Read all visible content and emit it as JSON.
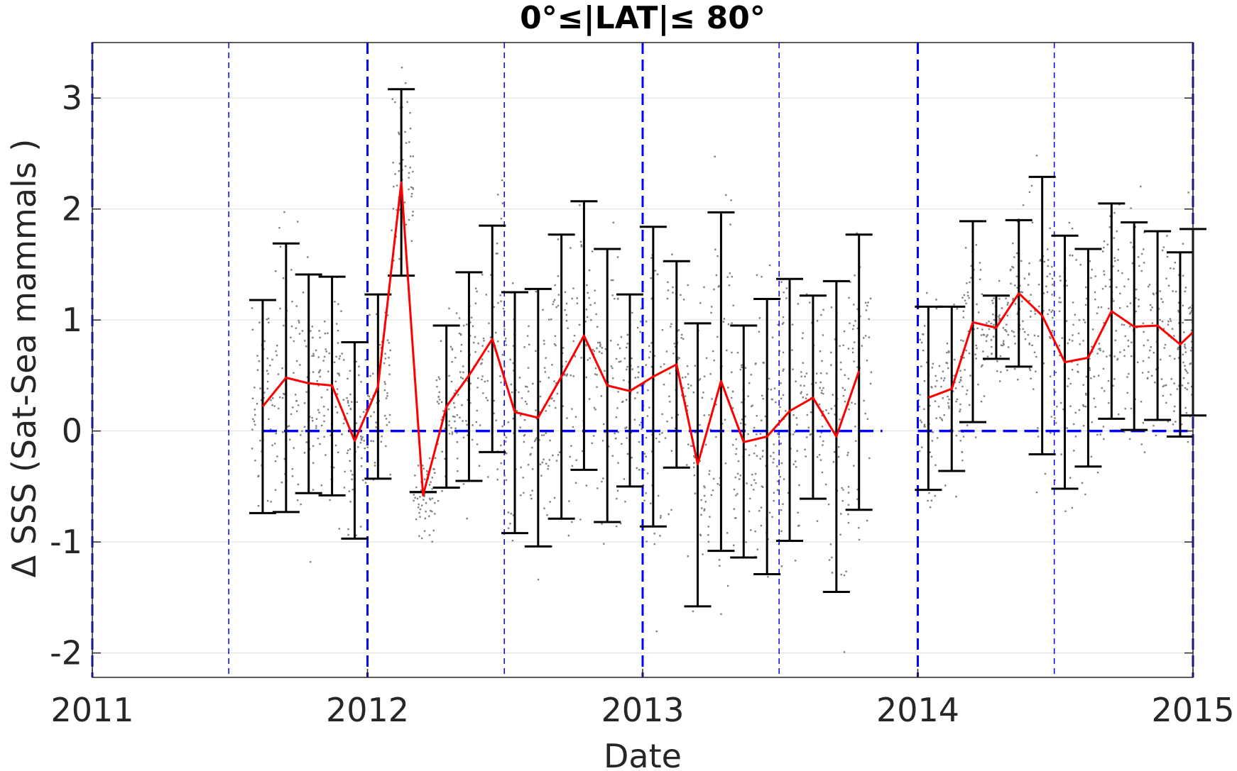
{
  "chart_data": {
    "type": "line",
    "title": "0°≤|LAT|≤ 80°",
    "xlabel": "Date",
    "ylabel": "Δ SSS (Sat-Sea mammals )",
    "xlim": [
      "2011-01-01",
      "2015-01-01"
    ],
    "ylim": [
      -2.22,
      3.5
    ],
    "x_ticks": [
      "2011",
      "2012",
      "2013",
      "2014",
      "2015"
    ],
    "y_ticks": [
      -2,
      -1,
      0,
      1,
      2,
      3
    ],
    "y_tick_labels": [
      "-2",
      "-1",
      "0",
      "1",
      "2",
      "3"
    ],
    "grid": "horizontal",
    "colors": {
      "mean_line": "#ff0000",
      "error_bars": "#000000",
      "year_lines": "#0000ff",
      "zero_line": "#0000ff",
      "scatter": "#808080",
      "grid": "#dddddd"
    },
    "year_boundaries": [
      "2011-01-01",
      "2012-01-01",
      "2013-01-01",
      "2014-01-01",
      "2015-01-01"
    ],
    "half_year_lines": [
      "2011-07-01",
      "2012-07-01",
      "2013-07-01",
      "2014-07-01"
    ],
    "zero_line_segments": [
      {
        "from": "2011-08-15",
        "to": "2013-11-15",
        "y": 0
      },
      {
        "from": "2014-01-01",
        "to": "2015-01-01",
        "y": 0
      }
    ],
    "series": [
      {
        "type": "line-errorbar",
        "segments": [
          [
            {
              "x": "2011-08-15",
              "y": 0.22,
              "low": -0.74,
              "high": 1.18
            },
            {
              "x": "2011-09-15",
              "y": 0.48,
              "low": -0.73,
              "high": 1.69
            },
            {
              "x": "2011-10-15",
              "y": 0.43,
              "low": -0.56,
              "high": 1.41
            },
            {
              "x": "2011-11-15",
              "y": 0.41,
              "low": -0.58,
              "high": 1.39
            },
            {
              "x": "2011-12-15",
              "y": -0.09,
              "low": -0.97,
              "high": 0.8
            },
            {
              "x": "2012-01-15",
              "y": 0.4,
              "low": -0.43,
              "high": 1.23
            },
            {
              "x": "2012-02-15",
              "y": 2.24,
              "low": 1.4,
              "high": 3.08
            },
            {
              "x": "2012-03-15",
              "y": -0.58,
              "low": -0.55,
              "high": -0.55
            },
            {
              "x": "2012-04-15",
              "y": 0.22,
              "low": -0.51,
              "high": 0.95
            },
            {
              "x": "2012-05-15",
              "y": 0.5,
              "low": -0.45,
              "high": 1.43
            },
            {
              "x": "2012-06-15",
              "y": 0.83,
              "low": -0.19,
              "high": 1.85
            },
            {
              "x": "2012-07-15",
              "y": 0.17,
              "low": -0.92,
              "high": 1.25
            },
            {
              "x": "2012-08-15",
              "y": 0.12,
              "low": -1.04,
              "high": 1.28
            },
            {
              "x": "2012-09-15",
              "y": 0.49,
              "low": -0.79,
              "high": 1.77
            },
            {
              "x": "2012-10-15",
              "y": 0.86,
              "low": -0.35,
              "high": 2.07
            },
            {
              "x": "2012-11-15",
              "y": 0.41,
              "low": -0.82,
              "high": 1.64
            },
            {
              "x": "2012-12-15",
              "y": 0.36,
              "low": -0.5,
              "high": 1.23
            },
            {
              "x": "2013-01-15",
              "y": 0.49,
              "low": -0.86,
              "high": 1.84
            },
            {
              "x": "2013-02-15",
              "y": 0.6,
              "low": -0.33,
              "high": 1.53
            },
            {
              "x": "2013-03-15",
              "y": -0.3,
              "low": -1.58,
              "high": 0.97
            },
            {
              "x": "2013-04-15",
              "y": 0.45,
              "low": -1.08,
              "high": 1.97
            },
            {
              "x": "2013-05-15",
              "y": -0.1,
              "low": -1.14,
              "high": 0.95
            },
            {
              "x": "2013-06-15",
              "y": -0.05,
              "low": -1.29,
              "high": 1.19
            },
            {
              "x": "2013-07-15",
              "y": 0.18,
              "low": -0.99,
              "high": 1.37
            },
            {
              "x": "2013-08-15",
              "y": 0.3,
              "low": -0.61,
              "high": 1.22
            },
            {
              "x": "2013-09-15",
              "y": -0.05,
              "low": -1.45,
              "high": 1.35
            },
            {
              "x": "2013-10-15",
              "y": 0.54,
              "low": -0.71,
              "high": 1.77
            }
          ],
          [
            {
              "x": "2014-01-15",
              "y": 0.3,
              "low": -0.53,
              "high": 1.12
            },
            {
              "x": "2014-02-15",
              "y": 0.38,
              "low": -0.36,
              "high": 1.12
            },
            {
              "x": "2014-03-15",
              "y": 0.98,
              "low": 0.08,
              "high": 1.89
            },
            {
              "x": "2014-04-15",
              "y": 0.93,
              "low": 0.65,
              "high": 1.22
            },
            {
              "x": "2014-05-15",
              "y": 1.24,
              "low": 0.58,
              "high": 1.9
            },
            {
              "x": "2014-06-15",
              "y": 1.04,
              "low": -0.21,
              "high": 2.29
            },
            {
              "x": "2014-07-15",
              "y": 0.62,
              "low": -0.52,
              "high": 1.76
            },
            {
              "x": "2014-08-15",
              "y": 0.66,
              "low": -0.32,
              "high": 1.64
            },
            {
              "x": "2014-09-15",
              "y": 1.08,
              "low": 0.11,
              "high": 2.05
            },
            {
              "x": "2014-10-15",
              "y": 0.94,
              "low": 0.01,
              "high": 1.88
            },
            {
              "x": "2014-11-15",
              "y": 0.95,
              "low": 0.1,
              "high": 1.8
            },
            {
              "x": "2014-12-15",
              "y": 0.78,
              "low": -0.05,
              "high": 1.61
            },
            {
              "x": "2015-01-01",
              "y": 0.89,
              "low": 0.14,
              "high": 1.82
            }
          ]
        ]
      }
    ],
    "scatter_note": "dense grey point cloud of individual differences, roughly spanning -2.1 to 3.5 around each monthly mean"
  }
}
